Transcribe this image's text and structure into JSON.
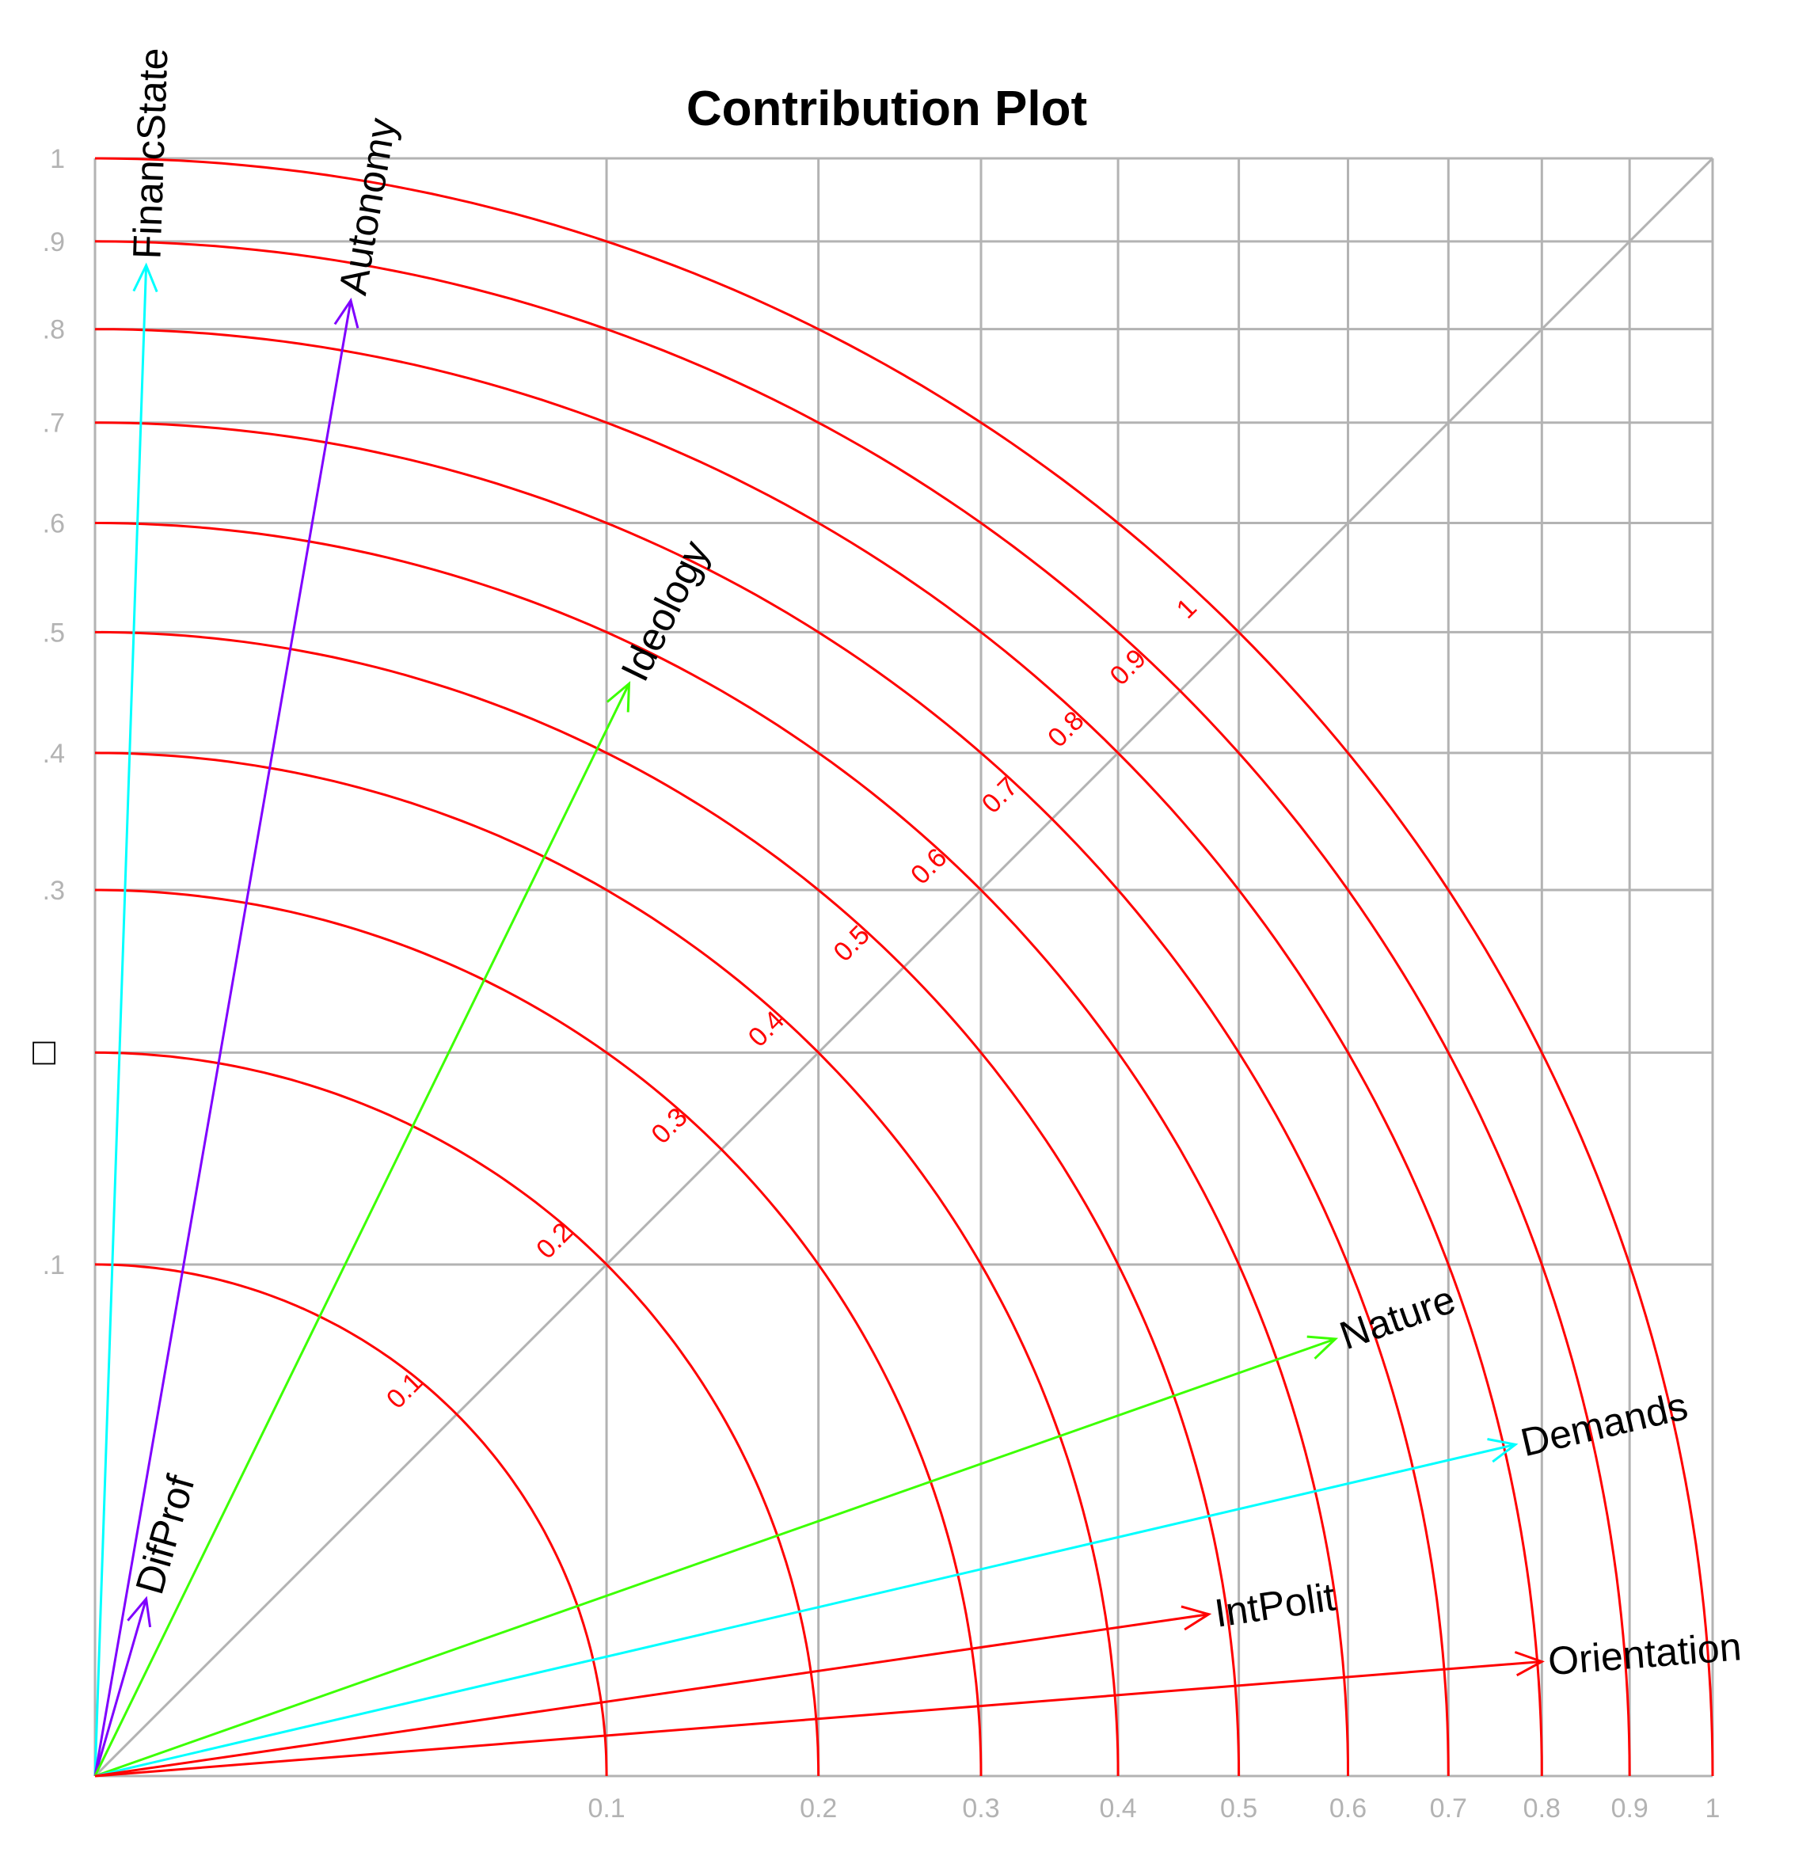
{
  "chart_data": {
    "type": "contribution-plot",
    "title": "Contribution Plot",
    "xlabel": "",
    "ylabel": "□",
    "xlim": [
      0,
      1
    ],
    "ylim": [
      0,
      1
    ],
    "axis_scale": "sqrt",
    "ticks": [
      0.1,
      0.2,
      0.3,
      0.4,
      0.5,
      0.6,
      0.7,
      0.8,
      0.9,
      1
    ],
    "x_tick_labels": [
      "0.1",
      "0.2",
      "0.3",
      "0.4",
      "0.5",
      "0.6",
      "0.7",
      "0.8",
      "0.9",
      "1"
    ],
    "y_tick_labels": [
      ".1",
      "",
      "",
      ".3",
      ".4",
      ".5",
      ".6",
      ".7",
      ".8",
      ".9",
      "1"
    ],
    "y_tick_values": [
      0.1,
      null,
      null,
      0.3,
      0.4,
      0.5,
      0.6,
      0.7,
      0.8,
      0.9,
      1
    ],
    "grid_lines": [
      0.1,
      0.2,
      0.3,
      0.4,
      0.5,
      0.6,
      0.7,
      0.8,
      0.9,
      1
    ],
    "grid": true,
    "diagonal": true,
    "arc_levels": [
      0.1,
      0.2,
      0.3,
      0.4,
      0.5,
      0.6,
      0.7,
      0.8,
      0.9,
      1
    ],
    "arc_labels": [
      "0.1",
      "0.2",
      "0.3",
      "0.4",
      "0.5",
      "0.6",
      "0.7",
      "0.8",
      "0.9",
      "1"
    ],
    "series": [
      {
        "name": "FinancState",
        "x": 0.001,
        "y": 0.872,
        "color": "#00ffff"
      },
      {
        "name": "Autonomy",
        "x": 0.025,
        "y": 0.832,
        "color": "#7f00ff"
      },
      {
        "name": "DifProf",
        "x": 0.001,
        "y": 0.012,
        "color": "#7f00ff"
      },
      {
        "name": "Ideology",
        "x": 0.109,
        "y": 0.456,
        "color": "#3cff00"
      },
      {
        "name": "Nature",
        "x": 0.588,
        "y": 0.073,
        "color": "#3cff00"
      },
      {
        "name": "Demands",
        "x": 0.771,
        "y": 0.042,
        "color": "#00ffff"
      },
      {
        "name": "IntPolit",
        "x": 0.474,
        "y": 0.01,
        "color": "#ff0000"
      },
      {
        "name": "Orientation",
        "x": 0.8,
        "y": 0.005,
        "color": "#ff0000"
      }
    ]
  },
  "colors": {
    "grid": "#b3b3b3",
    "arcs": "#ff0000",
    "tick_text": "#b3b3b3",
    "axis_text": "#000000"
  }
}
